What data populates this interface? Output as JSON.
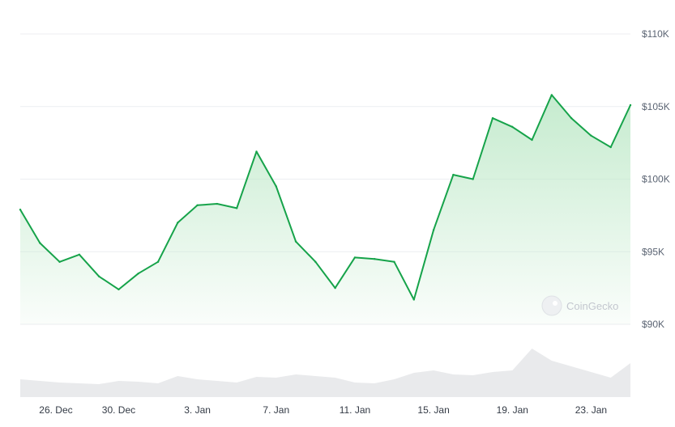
{
  "chart_data": {
    "type": "area",
    "title": "",
    "xlabel": "",
    "ylabel": "",
    "x_tick_labels": [
      "26. Dec",
      "30. Dec",
      "3. Jan",
      "7. Jan",
      "11. Jan",
      "15. Jan",
      "19. Jan",
      "23. Jan"
    ],
    "y_tick_labels": [
      "$90K",
      "$95K",
      "$100K",
      "$105K",
      "$110K"
    ],
    "y_tick_values": [
      90000,
      95000,
      100000,
      105000,
      110000
    ],
    "ylim": [
      90000,
      110000
    ],
    "x_start": "2024-12-25",
    "x_end": "2025-01-25",
    "grid": true,
    "legend": "none",
    "colors": {
      "line": "#16a34a",
      "fill_top": "#bfe9c9",
      "volume": "#e9eaec",
      "grid": "#eceef1"
    },
    "series": [
      {
        "x": [
          "2024-12-25",
          "2024-12-26",
          "2024-12-27",
          "2024-12-28",
          "2024-12-29",
          "2024-12-30",
          "2024-12-31",
          "2025-01-01",
          "2025-01-02",
          "2025-01-03",
          "2025-01-04",
          "2025-01-05",
          "2025-01-06",
          "2025-01-07",
          "2025-01-08",
          "2025-01-09",
          "2025-01-10",
          "2025-01-11",
          "2025-01-12",
          "2025-01-13",
          "2025-01-14",
          "2025-01-15",
          "2025-01-16",
          "2025-01-17",
          "2025-01-18",
          "2025-01-19",
          "2025-01-20",
          "2025-01-21",
          "2025-01-22",
          "2025-01-23",
          "2025-01-24",
          "2025-01-25"
        ],
        "values": [
          97900,
          95600,
          94300,
          94800,
          93300,
          92400,
          93500,
          94300,
          97000,
          98200,
          98300,
          98000,
          101900,
          99500,
          95700,
          94300,
          92500,
          94600,
          94500,
          94300,
          91700,
          96500,
          100300,
          100000,
          104200,
          103600,
          102700,
          105800,
          104200,
          103000,
          102200,
          105100
        ]
      }
    ],
    "volume": {
      "relative_values": [
        0.22,
        0.2,
        0.18,
        0.17,
        0.16,
        0.2,
        0.19,
        0.17,
        0.26,
        0.22,
        0.2,
        0.18,
        0.25,
        0.24,
        0.28,
        0.26,
        0.24,
        0.18,
        0.17,
        0.22,
        0.3,
        0.33,
        0.28,
        0.27,
        0.31,
        0.33,
        0.6,
        0.45,
        0.38,
        0.31,
        0.24,
        0.42
      ]
    }
  },
  "watermark": {
    "text": "CoinGecko"
  }
}
